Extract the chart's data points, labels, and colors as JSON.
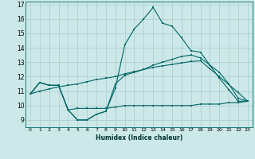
{
  "xlabel": "Humidex (Indice chaleur)",
  "ylabel": "",
  "background_color": "#cce8e8",
  "grid_color": "#aacccc",
  "line_color": "#006666",
  "xlim": [
    -0.5,
    23.5
  ],
  "ylim": [
    8.5,
    17.2
  ],
  "xticks": [
    0,
    1,
    2,
    3,
    4,
    5,
    6,
    7,
    8,
    9,
    10,
    11,
    12,
    13,
    14,
    15,
    16,
    17,
    18,
    19,
    20,
    21,
    22,
    23
  ],
  "yticks": [
    9,
    10,
    11,
    12,
    13,
    14,
    15,
    16,
    17
  ],
  "series": [
    [
      10.8,
      11.6,
      11.4,
      11.4,
      9.7,
      9.0,
      9.0,
      9.4,
      9.6,
      11.2,
      14.2,
      15.3,
      16.0,
      16.8,
      15.7,
      15.5,
      14.7,
      13.8,
      13.7,
      12.8,
      11.9,
      11.1,
      10.3,
      10.3
    ],
    [
      10.8,
      11.6,
      11.4,
      11.4,
      9.7,
      9.0,
      9.0,
      9.4,
      9.6,
      11.5,
      12.1,
      12.3,
      12.5,
      12.8,
      13.0,
      13.2,
      13.4,
      13.5,
      13.3,
      12.8,
      12.3,
      11.5,
      10.5,
      10.3
    ],
    [
      10.8,
      11.0,
      11.15,
      11.3,
      11.4,
      11.5,
      11.65,
      11.8,
      11.9,
      12.0,
      12.2,
      12.35,
      12.5,
      12.65,
      12.75,
      12.85,
      12.95,
      13.05,
      13.1,
      12.55,
      12.0,
      11.45,
      10.9,
      10.3
    ],
    [
      10.8,
      11.6,
      11.4,
      11.4,
      9.7,
      9.8,
      9.8,
      9.8,
      9.8,
      9.9,
      10.0,
      10.0,
      10.0,
      10.0,
      10.0,
      10.0,
      10.0,
      10.0,
      10.1,
      10.1,
      10.1,
      10.2,
      10.2,
      10.3
    ]
  ]
}
